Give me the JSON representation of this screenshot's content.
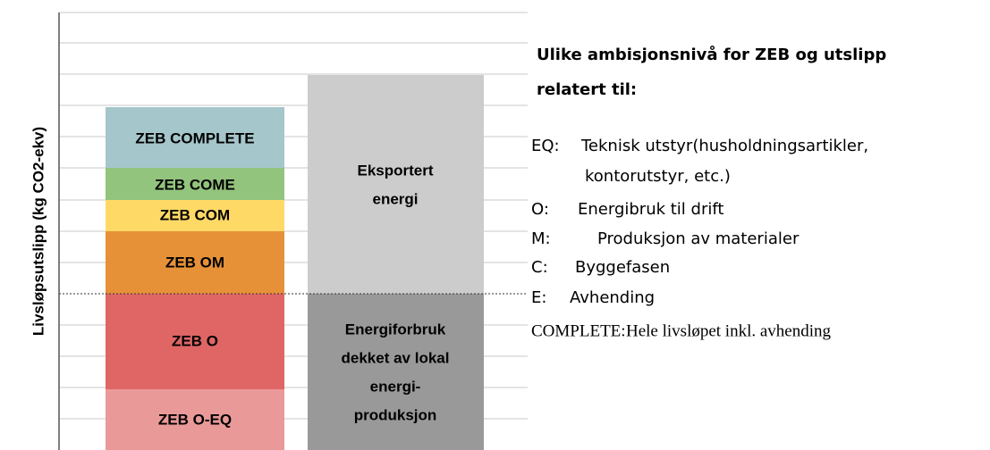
{
  "axis_label": "Livsløpsutslipp (kg CO2-ekv)",
  "bars": [
    {
      "segments": [
        {
          "label": [
            "ZEB COMPLETE"
          ]
        },
        {
          "label": [
            "ZEB COME"
          ]
        },
        {
          "label": [
            "ZEB COM"
          ]
        },
        {
          "label": [
            "ZEB OM"
          ]
        },
        {
          "label": [
            "ZEB O"
          ]
        },
        {
          "label": [
            "ZEB O-EQ"
          ]
        }
      ]
    },
    {
      "segments": [
        {
          "label": [
            "Eksportert",
            "energi"
          ]
        },
        {
          "label": [
            "Energiforbruk",
            "dekket av lokal",
            "energi-",
            "produksjon"
          ]
        }
      ]
    }
  ],
  "panel": {
    "title": [
      "Ulike ambisjonsnivå for ZEB og utslipp",
      "relatert til:"
    ],
    "items": [
      {
        "key": "EQ:",
        "text": [
          "Teknisk utstyr(husholdningsartikler,",
          "kontorutstyr, etc.)"
        ]
      },
      {
        "key": "O:",
        "text": [
          "Energibruk til drift"
        ]
      },
      {
        "key": "M:",
        "text": [
          "Produksjon av materialer"
        ]
      },
      {
        "key": "C:",
        "text": [
          "Byggefasen"
        ]
      },
      {
        "key": "E:",
        "text": [
          "Avhending"
        ]
      },
      {
        "key": "COMPLETE:",
        "text": [
          "Hele livsløpet inkl. avhending"
        ]
      }
    ]
  }
}
